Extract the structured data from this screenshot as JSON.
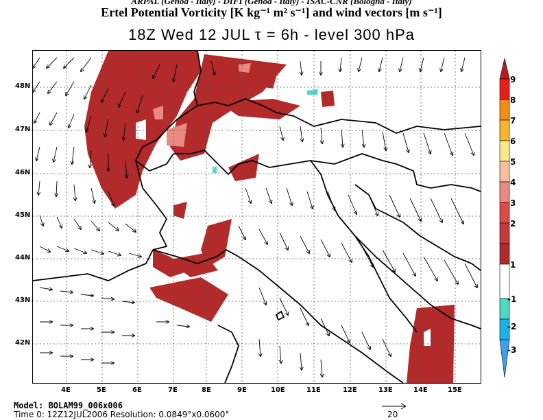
{
  "header": {
    "institutions": "ARPAL (Genoa - Italy)  -  DIFI (Genoa - Italy)  -  ISAC-CNR (Bologna - Italy)",
    "field_title": "Ertel Potential Vorticity [K kg⁻¹ m² s⁻¹] and wind vectors [m s⁻¹]",
    "valid_time": "18Z Wed 12 JUL   τ = 6h   -   level 300 hPa"
  },
  "map": {
    "lat_labels": [
      "48N",
      "47N",
      "46N",
      "45N",
      "44N",
      "43N",
      "42N"
    ],
    "lon_labels": [
      "4E",
      "5E",
      "6E",
      "7E",
      "8E",
      "9E",
      "10E",
      "11E",
      "12E",
      "13E",
      "14E",
      "15E"
    ],
    "gridlines": true
  },
  "colorbar": {
    "labels": [
      "9",
      "8",
      "7",
      "6",
      "5",
      "4",
      "3",
      "2",
      "1",
      "-1",
      "-2",
      "-3"
    ],
    "colors": [
      "#b81c1c",
      "#e61e1e",
      "#f28c1a",
      "#f7b433",
      "#fbe88e",
      "#f8bf9c",
      "#e88a84",
      "#dd4a4a",
      "#b22a2a",
      "#ffffff",
      "#4fd8c4",
      "#1fb2e0",
      "#3aa0f0"
    ]
  },
  "footer": {
    "model": "Model: BOLAM99_006x006",
    "time_res": "Time 0: 12Z12JUL2006     Resolution: 0.0849°x0.0600°",
    "ref_vector_label": "20"
  }
}
